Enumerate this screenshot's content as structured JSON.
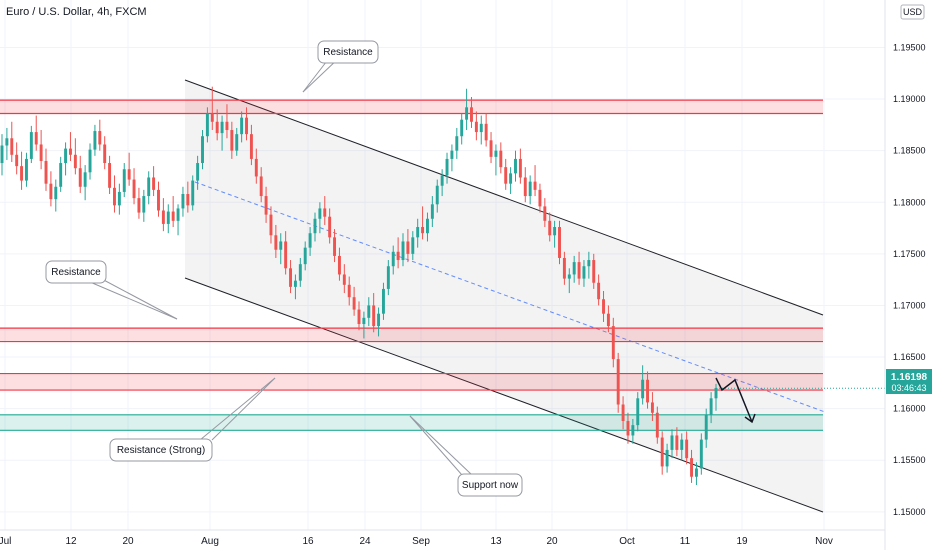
{
  "header": {
    "symbol_title": "Euro / U.S. Dollar, 4h, FXCM",
    "currency_button": "USD"
  },
  "price_tag": {
    "price": "1.16198",
    "countdown": "03:46:43"
  },
  "chart_data": {
    "type": "candlestick",
    "title": "Euro / U.S. Dollar, 4h, FXCM",
    "x_ticks": [
      "Jul",
      "12",
      "20",
      "Aug",
      "16",
      "24",
      "Sep",
      "13",
      "20",
      "Oct",
      "11",
      "19",
      "Nov"
    ],
    "y_ticks": [
      "1.19500",
      "1.19000",
      "1.18500",
      "1.18000",
      "1.17500",
      "1.17000",
      "1.16500",
      "1.16000",
      "1.15500",
      "1.15000"
    ],
    "ylim": [
      1.1463,
      1.1996
    ],
    "zones": [
      {
        "name": "Resistance",
        "from": 1.1886,
        "to": 1.1899,
        "color": "#f23645"
      },
      {
        "name": "Resistance",
        "from": 1.1665,
        "to": 1.1678,
        "color": "#f23645"
      },
      {
        "name": "Resistance (Strong)",
        "from": 1.1618,
        "to": 1.1634,
        "color": "#f23645"
      },
      {
        "name": "Support now",
        "from": 1.1579,
        "to": 1.1594,
        "color": "#22ab94"
      }
    ],
    "annotations": [
      "Resistance",
      "Resistance",
      "Resistance (Strong)",
      "Support now"
    ],
    "last_price": 1.16198,
    "candles": [
      [
        1.1838,
        1.1866,
        1.1826,
        1.1855
      ],
      [
        1.1855,
        1.1872,
        1.1841,
        1.1862
      ],
      [
        1.1862,
        1.1878,
        1.1839,
        1.1846
      ],
      [
        1.1846,
        1.1858,
        1.1827,
        1.1835
      ],
      [
        1.1835,
        1.1849,
        1.1812,
        1.1821
      ],
      [
        1.1821,
        1.1848,
        1.1815,
        1.1842
      ],
      [
        1.1842,
        1.1874,
        1.1838,
        1.1868
      ],
      [
        1.1868,
        1.1884,
        1.185,
        1.1856
      ],
      [
        1.1856,
        1.187,
        1.1832,
        1.184
      ],
      [
        1.184,
        1.1852,
        1.1811,
        1.1818
      ],
      [
        1.1818,
        1.183,
        1.1796,
        1.1803
      ],
      [
        1.1803,
        1.1822,
        1.1791,
        1.1815
      ],
      [
        1.1815,
        1.1844,
        1.181,
        1.1838
      ],
      [
        1.1838,
        1.1858,
        1.1826,
        1.1852
      ],
      [
        1.1852,
        1.1868,
        1.184,
        1.1846
      ],
      [
        1.1846,
        1.1862,
        1.1827,
        1.1833
      ],
      [
        1.1833,
        1.1845,
        1.1809,
        1.1815
      ],
      [
        1.1815,
        1.1836,
        1.1802,
        1.1829
      ],
      [
        1.1829,
        1.1857,
        1.1822,
        1.1851
      ],
      [
        1.1851,
        1.1875,
        1.1845,
        1.1869
      ],
      [
        1.1869,
        1.188,
        1.185,
        1.1856
      ],
      [
        1.1856,
        1.1864,
        1.1832,
        1.1838
      ],
      [
        1.1838,
        1.1845,
        1.1808,
        1.1814
      ],
      [
        1.1814,
        1.1826,
        1.179,
        1.1797
      ],
      [
        1.1797,
        1.1818,
        1.1788,
        1.181
      ],
      [
        1.181,
        1.1838,
        1.1805,
        1.1832
      ],
      [
        1.1832,
        1.1848,
        1.1816,
        1.1822
      ],
      [
        1.1822,
        1.1833,
        1.1798,
        1.1804
      ],
      [
        1.1804,
        1.1814,
        1.1784,
        1.179
      ],
      [
        1.179,
        1.1812,
        1.1781,
        1.1806
      ],
      [
        1.1806,
        1.183,
        1.1798,
        1.1824
      ],
      [
        1.1824,
        1.1835,
        1.1806,
        1.1812
      ],
      [
        1.1812,
        1.182,
        1.1786,
        1.1792
      ],
      [
        1.1792,
        1.1804,
        1.1772,
        1.1779
      ],
      [
        1.1779,
        1.1798,
        1.177,
        1.1791
      ],
      [
        1.1791,
        1.1806,
        1.1776,
        1.1782
      ],
      [
        1.1782,
        1.1798,
        1.1768,
        1.1794
      ],
      [
        1.1794,
        1.1815,
        1.1786,
        1.1808
      ],
      [
        1.1808,
        1.182,
        1.179,
        1.1797
      ],
      [
        1.1797,
        1.1826,
        1.1792,
        1.1821
      ],
      [
        1.1821,
        1.1845,
        1.1812,
        1.1838
      ],
      [
        1.1838,
        1.187,
        1.1832,
        1.1864
      ],
      [
        1.1864,
        1.1892,
        1.1858,
        1.1886
      ],
      [
        1.1886,
        1.1912,
        1.187,
        1.1878
      ],
      [
        1.1878,
        1.189,
        1.186,
        1.1867
      ],
      [
        1.1867,
        1.1884,
        1.185,
        1.1878
      ],
      [
        1.1878,
        1.1895,
        1.1862,
        1.187
      ],
      [
        1.187,
        1.1878,
        1.1842,
        1.185
      ],
      [
        1.185,
        1.1872,
        1.1845,
        1.1866
      ],
      [
        1.1866,
        1.1888,
        1.1858,
        1.1882
      ],
      [
        1.1882,
        1.1892,
        1.186,
        1.1866
      ],
      [
        1.1866,
        1.1875,
        1.1836,
        1.1842
      ],
      [
        1.1842,
        1.1852,
        1.1818,
        1.1825
      ],
      [
        1.1825,
        1.1834,
        1.18,
        1.1806
      ],
      [
        1.1806,
        1.1815,
        1.178,
        1.1788
      ],
      [
        1.1788,
        1.1796,
        1.176,
        1.1768
      ],
      [
        1.1768,
        1.1778,
        1.1746,
        1.1754
      ],
      [
        1.1754,
        1.177,
        1.174,
        1.1762
      ],
      [
        1.1762,
        1.1772,
        1.173,
        1.1736
      ],
      [
        1.1736,
        1.1744,
        1.1712,
        1.1718
      ],
      [
        1.1718,
        1.173,
        1.1706,
        1.1724
      ],
      [
        1.1724,
        1.1746,
        1.1718,
        1.174
      ],
      [
        1.174,
        1.1762,
        1.1734,
        1.1756
      ],
      [
        1.1756,
        1.1776,
        1.1748,
        1.177
      ],
      [
        1.177,
        1.179,
        1.1762,
        1.1784
      ],
      [
        1.1784,
        1.18,
        1.177,
        1.1794
      ],
      [
        1.1794,
        1.1806,
        1.1778,
        1.1786
      ],
      [
        1.1786,
        1.1794,
        1.176,
        1.1766
      ],
      [
        1.1766,
        1.1774,
        1.1742,
        1.1748
      ],
      [
        1.1748,
        1.1756,
        1.1724,
        1.173
      ],
      [
        1.173,
        1.174,
        1.1712,
        1.172
      ],
      [
        1.172,
        1.1728,
        1.17,
        1.1708
      ],
      [
        1.1708,
        1.1718,
        1.169,
        1.1696
      ],
      [
        1.1696,
        1.1704,
        1.1676,
        1.1682
      ],
      [
        1.1682,
        1.1694,
        1.1668,
        1.1688
      ],
      [
        1.1688,
        1.1708,
        1.168,
        1.17
      ],
      [
        1.17,
        1.1712,
        1.1674,
        1.168
      ],
      [
        1.168,
        1.1698,
        1.167,
        1.1692
      ],
      [
        1.1692,
        1.1722,
        1.1686,
        1.1716
      ],
      [
        1.1716,
        1.1744,
        1.171,
        1.1738
      ],
      [
        1.1738,
        1.1758,
        1.173,
        1.1752
      ],
      [
        1.1752,
        1.1766,
        1.1736,
        1.1744
      ],
      [
        1.1744,
        1.177,
        1.1738,
        1.1762
      ],
      [
        1.1762,
        1.1774,
        1.1742,
        1.175
      ],
      [
        1.175,
        1.1772,
        1.1744,
        1.1766
      ],
      [
        1.1766,
        1.1784,
        1.1756,
        1.1776
      ],
      [
        1.1776,
        1.1796,
        1.1764,
        1.177
      ],
      [
        1.177,
        1.179,
        1.1762,
        1.1784
      ],
      [
        1.1784,
        1.1806,
        1.1776,
        1.1798
      ],
      [
        1.1798,
        1.1822,
        1.179,
        1.1816
      ],
      [
        1.1816,
        1.1832,
        1.1806,
        1.1826
      ],
      [
        1.1826,
        1.1848,
        1.1818,
        1.1842
      ],
      [
        1.1842,
        1.1856,
        1.183,
        1.185
      ],
      [
        1.185,
        1.1872,
        1.1842,
        1.1864
      ],
      [
        1.1864,
        1.1886,
        1.1856,
        1.188
      ],
      [
        1.188,
        1.191,
        1.187,
        1.1892
      ],
      [
        1.1892,
        1.1902,
        1.1872,
        1.1878
      ],
      [
        1.1878,
        1.1888,
        1.186,
        1.1868
      ],
      [
        1.1868,
        1.1884,
        1.1856,
        1.1876
      ],
      [
        1.1876,
        1.1886,
        1.1854,
        1.186
      ],
      [
        1.186,
        1.1868,
        1.1838,
        1.1844
      ],
      [
        1.1844,
        1.1856,
        1.1826,
        1.185
      ],
      [
        1.185,
        1.1858,
        1.1828,
        1.1834
      ],
      [
        1.1834,
        1.1842,
        1.1812,
        1.1818
      ],
      [
        1.1818,
        1.1834,
        1.1808,
        1.1828
      ],
      [
        1.1828,
        1.185,
        1.182,
        1.1842
      ],
      [
        1.1842,
        1.1852,
        1.1818,
        1.1824
      ],
      [
        1.1824,
        1.1834,
        1.18,
        1.1806
      ],
      [
        1.1806,
        1.1826,
        1.1798,
        1.182
      ],
      [
        1.182,
        1.1836,
        1.1806,
        1.1812
      ],
      [
        1.1812,
        1.1818,
        1.179,
        1.1796
      ],
      [
        1.1796,
        1.1804,
        1.1776,
        1.1782
      ],
      [
        1.1782,
        1.179,
        1.1762,
        1.1768
      ],
      [
        1.1768,
        1.1782,
        1.1756,
        1.1776
      ],
      [
        1.1776,
        1.1782,
        1.174,
        1.1746
      ],
      [
        1.1746,
        1.1752,
        1.172,
        1.1726
      ],
      [
        1.1726,
        1.1736,
        1.1712,
        1.173
      ],
      [
        1.173,
        1.1748,
        1.1722,
        1.1742
      ],
      [
        1.1742,
        1.1752,
        1.172,
        1.1726
      ],
      [
        1.1726,
        1.1744,
        1.1718,
        1.1738
      ],
      [
        1.1738,
        1.1752,
        1.1726,
        1.1744
      ],
      [
        1.1744,
        1.175,
        1.1716,
        1.1722
      ],
      [
        1.1722,
        1.173,
        1.17,
        1.1706
      ],
      [
        1.1706,
        1.1714,
        1.1684,
        1.1692
      ],
      [
        1.1692,
        1.17,
        1.1674,
        1.168
      ],
      [
        1.168,
        1.1688,
        1.164,
        1.1648
      ],
      [
        1.1648,
        1.1654,
        1.1596,
        1.1604
      ],
      [
        1.1604,
        1.1612,
        1.158,
        1.1588
      ],
      [
        1.1588,
        1.1596,
        1.1566,
        1.1574
      ],
      [
        1.1574,
        1.159,
        1.1566,
        1.1584
      ],
      [
        1.1584,
        1.1616,
        1.1578,
        1.161
      ],
      [
        1.161,
        1.1642,
        1.1604,
        1.1628
      ],
      [
        1.1628,
        1.1636,
        1.16,
        1.1606
      ],
      [
        1.1606,
        1.1616,
        1.1588,
        1.1596
      ],
      [
        1.1596,
        1.1602,
        1.1566,
        1.1572
      ],
      [
        1.1572,
        1.1578,
        1.1536,
        1.1544
      ],
      [
        1.1544,
        1.1566,
        1.1538,
        1.156
      ],
      [
        1.156,
        1.158,
        1.1552,
        1.1574
      ],
      [
        1.1574,
        1.1582,
        1.1554,
        1.156
      ],
      [
        1.156,
        1.1576,
        1.155,
        1.157
      ],
      [
        1.157,
        1.1578,
        1.1546,
        1.1552
      ],
      [
        1.1552,
        1.156,
        1.1528,
        1.1534
      ],
      [
        1.1534,
        1.1548,
        1.1526,
        1.1542
      ],
      [
        1.1542,
        1.1576,
        1.1536,
        1.157
      ],
      [
        1.157,
        1.16,
        1.1562,
        1.1594
      ],
      [
        1.1594,
        1.1616,
        1.1586,
        1.161
      ],
      [
        1.161,
        1.1624,
        1.1598,
        1.162
      ]
    ]
  }
}
